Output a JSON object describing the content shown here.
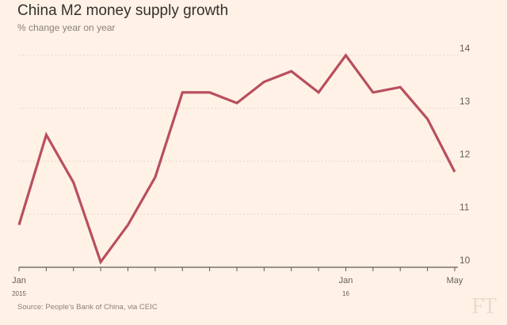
{
  "chart_data": {
    "type": "line",
    "title": "China M2 money supply growth",
    "subtitle": "% change year on year",
    "source": "Source: People's Bank of China, via CEIC",
    "ylim": [
      10,
      14
    ],
    "yticks": [
      10,
      11,
      12,
      13,
      14
    ],
    "y_axis_side": "right",
    "grid": "horizontal dotted",
    "x": [
      "Jan 2015",
      "Feb 2015",
      "Mar 2015",
      "Apr 2015",
      "May 2015",
      "Jun 2015",
      "Jul 2015",
      "Aug 2015",
      "Sep 2015",
      "Oct 2015",
      "Nov 2015",
      "Dec 2015",
      "Jan 2016",
      "Feb 2016",
      "Mar 2016",
      "Apr 2016",
      "May 2016"
    ],
    "xtick_labels": [
      {
        "label": "Jan",
        "sublabel": "2015",
        "index": 0
      },
      {
        "label": "Jan",
        "sublabel": "16",
        "index": 12
      },
      {
        "label": "May",
        "sublabel": "",
        "index": 16
      }
    ],
    "series": [
      {
        "values": [
          10.8,
          12.5,
          11.6,
          10.1,
          10.8,
          11.7,
          13.3,
          13.3,
          13.1,
          13.5,
          13.7,
          13.3,
          14.0,
          13.3,
          13.4,
          12.8,
          11.8
        ]
      }
    ],
    "colors": {
      "line": "#b84e5f",
      "background": "#fff1e5",
      "grid": "#d9cfc5"
    }
  },
  "branding": {
    "logo_text": "FT"
  }
}
